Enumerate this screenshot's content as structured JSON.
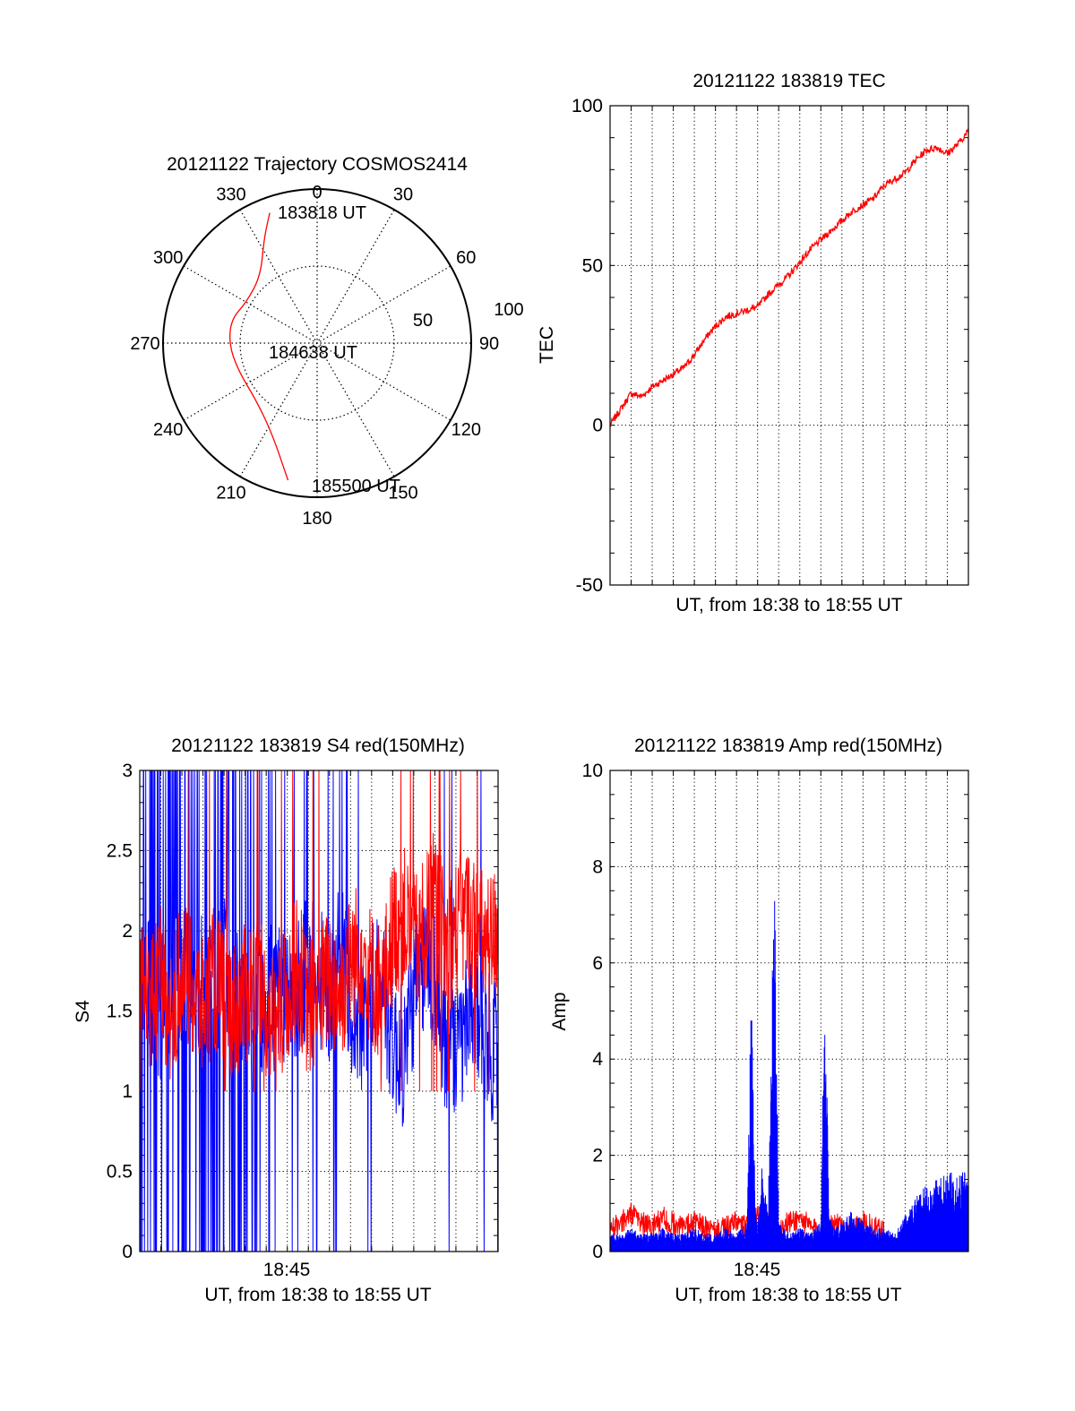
{
  "colors": {
    "red": "#ff0000",
    "blue": "#0000ff",
    "axis": "#000000",
    "grid": "#000000"
  },
  "chart_data": [
    {
      "type": "polar",
      "title": "20121122 Trajectory COSMOS2414",
      "azimuth_labels": [
        "0",
        "30",
        "60",
        "90",
        "120",
        "150",
        "180",
        "210",
        "240",
        "270",
        "300",
        "330"
      ],
      "radius_labels": [
        "50",
        "100"
      ],
      "zenith_angle_range": [
        0,
        100
      ],
      "grid": true,
      "series": [
        {
          "color": "red",
          "points": [
            {
              "azimuth": 340,
              "zenith": 90
            },
            {
              "azimuth": 333,
              "zenith": 76
            },
            {
              "azimuth": 320,
              "zenith": 57
            },
            {
              "azimuth": 300,
              "zenith": 53
            },
            {
              "azimuth": 285,
              "zenith": 58
            },
            {
              "azimuth": 268,
              "zenith": 57
            },
            {
              "azimuth": 250,
              "zenith": 54
            },
            {
              "azimuth": 228,
              "zenith": 54
            },
            {
              "azimuth": 207,
              "zenith": 65
            },
            {
              "azimuth": 192,
              "zenith": 91
            }
          ]
        }
      ],
      "annotations": [
        {
          "text": "183818 UT",
          "azimuth": 338,
          "zenith": 94
        },
        {
          "text": "184638 UT",
          "azimuth": 268,
          "zenith": 8
        },
        {
          "text": "185500 UT",
          "azimuth": 192,
          "zenith": 104
        }
      ]
    },
    {
      "type": "line",
      "title": "20121122 183819 TEC",
      "xlabel": "UT, from 18:38 to 18:55 UT",
      "ylabel": "TEC",
      "xlim": [
        0,
        17
      ],
      "ylim": [
        -50,
        100
      ],
      "yticks": [
        "-50",
        "0",
        "50",
        "100"
      ],
      "grid": true,
      "series": [
        {
          "color": "red",
          "x": [
            0,
            0.5,
            1,
            1.5,
            2,
            2.5,
            3,
            3.5,
            4,
            4.5,
            5,
            5.5,
            6,
            6.5,
            7,
            7.5,
            8,
            8.5,
            9,
            9.5,
            10,
            10.5,
            11,
            11.5,
            12,
            12.5,
            13,
            13.5,
            14,
            14.5,
            15,
            15.5,
            16,
            16.5,
            17
          ],
          "y": [
            0,
            5,
            10,
            9,
            12,
            14,
            16,
            18,
            22,
            27,
            31,
            34,
            35,
            36,
            37,
            41,
            44,
            47,
            51,
            55,
            58,
            61,
            64,
            67,
            69,
            71,
            75,
            77,
            79,
            83,
            86,
            87,
            85,
            88,
            92
          ]
        }
      ]
    },
    {
      "type": "line",
      "title": "20121122 183819 S4 red(150MHz)",
      "xlabel": "UT, from 18:38 to 18:55 UT",
      "ylabel": "S4",
      "xticks": [
        "18:45"
      ],
      "xlim": [
        0,
        17
      ],
      "ylim": [
        0,
        3
      ],
      "yticks": [
        "0",
        "0.5",
        "1",
        "1.5",
        "2",
        "2.5",
        "3"
      ],
      "grid": true,
      "series": [
        {
          "color": "blue",
          "x": [
            0,
            0.5,
            1,
            1.5,
            2,
            2.5,
            3,
            3.5,
            4,
            4.5,
            5,
            5.5,
            6,
            6.5,
            7,
            7.5,
            8,
            8.5,
            9,
            9.5,
            10,
            10.5,
            11,
            11.5,
            12,
            12.5,
            13,
            13.5,
            14,
            14.5,
            15,
            15.5,
            16,
            16.5,
            17
          ],
          "y": [
            1.7,
            1.6,
            1.5,
            1.7,
            1.6,
            1.5,
            1.7,
            1.6,
            1.8,
            1.6,
            1.5,
            1.4,
            1.6,
            1.7,
            1.5,
            1.6,
            1.8,
            1.7,
            1.6,
            1.9,
            1.5,
            1.4,
            1.6,
            1.7,
            1.3,
            1.2,
            1.6,
            1.8,
            1.7,
            1.3,
            1.2,
            1.4,
            1.5,
            1.3,
            1.2
          ]
        },
        {
          "color": "red",
          "x": [
            0,
            0.5,
            1,
            1.5,
            2,
            2.5,
            3,
            3.5,
            4,
            4.5,
            5,
            5.5,
            6,
            6.5,
            7,
            7.5,
            8,
            8.5,
            9,
            9.5,
            10,
            10.5,
            11,
            11.5,
            12,
            12.5,
            13,
            13.5,
            14,
            14.5,
            15,
            15.5,
            16,
            16.5,
            17
          ],
          "y": [
            1.6,
            1.5,
            1.7,
            1.4,
            1.8,
            1.6,
            1.5,
            1.7,
            1.6,
            1.5,
            1.6,
            1.7,
            1.5,
            1.4,
            1.6,
            1.8,
            1.5,
            1.6,
            1.7,
            1.6,
            1.8,
            1.9,
            1.7,
            1.6,
            2.0,
            2.1,
            1.9,
            2.0,
            2.2,
            1.9,
            2.0,
            2.1,
            2.0,
            1.9,
            2.0
          ]
        }
      ]
    },
    {
      "type": "line",
      "title": "20121122 183819 Amp red(150MHz)",
      "xlabel": "UT, from 18:38 to 18:55 UT",
      "ylabel": "Amp",
      "xticks": [
        "18:45"
      ],
      "xlim": [
        0,
        17
      ],
      "ylim": [
        0,
        10
      ],
      "yticks": [
        "0",
        "2",
        "4",
        "6",
        "8",
        "10"
      ],
      "grid": true,
      "series": [
        {
          "color": "red",
          "x": [
            0,
            0.5,
            1,
            1.5,
            2,
            2.5,
            3,
            3.5,
            4,
            4.5,
            5,
            5.5,
            6,
            6.5,
            7,
            7.5,
            8,
            8.5,
            9,
            9.5,
            10,
            10.5,
            11,
            11.5,
            12,
            12.5,
            13
          ],
          "y": [
            0.5,
            0.6,
            0.8,
            0.6,
            0.5,
            0.7,
            0.6,
            0.5,
            0.6,
            0.5,
            0.4,
            0.5,
            0.6,
            0.5,
            0.7,
            0.6,
            0.5,
            0.6,
            0.7,
            0.5,
            0.4,
            0.6,
            0.5,
            0.4,
            0.6,
            0.5,
            0.4
          ]
        },
        {
          "color": "blue",
          "x": [
            0,
            0.5,
            1,
            1.5,
            2,
            2.5,
            3,
            3.5,
            4,
            4.5,
            5,
            5.5,
            6,
            6.5,
            6.7,
            6.9,
            7,
            7.2,
            7.5,
            7.7,
            7.8,
            8,
            8.5,
            9,
            9.5,
            10,
            10.2,
            10.4,
            10.6,
            11,
            11.5,
            12,
            12.5,
            13,
            13.5,
            14,
            14.5,
            15,
            15.5,
            16,
            16.5,
            17
          ],
          "y": [
            0.3,
            0.3,
            0.4,
            0.3,
            0.3,
            0.4,
            0.3,
            0.3,
            0.4,
            0.3,
            0.3,
            0.4,
            0.3,
            0.5,
            4.4,
            0.8,
            0.4,
            1.5,
            0.6,
            5.0,
            6.4,
            0.5,
            0.3,
            0.4,
            0.3,
            0.5,
            5.2,
            0.6,
            0.4,
            0.5,
            0.7,
            0.5,
            0.4,
            0.4,
            0.3,
            0.6,
            0.9,
            1.1,
            1.2,
            1.3,
            1.4,
            1.3
          ]
        }
      ]
    }
  ]
}
